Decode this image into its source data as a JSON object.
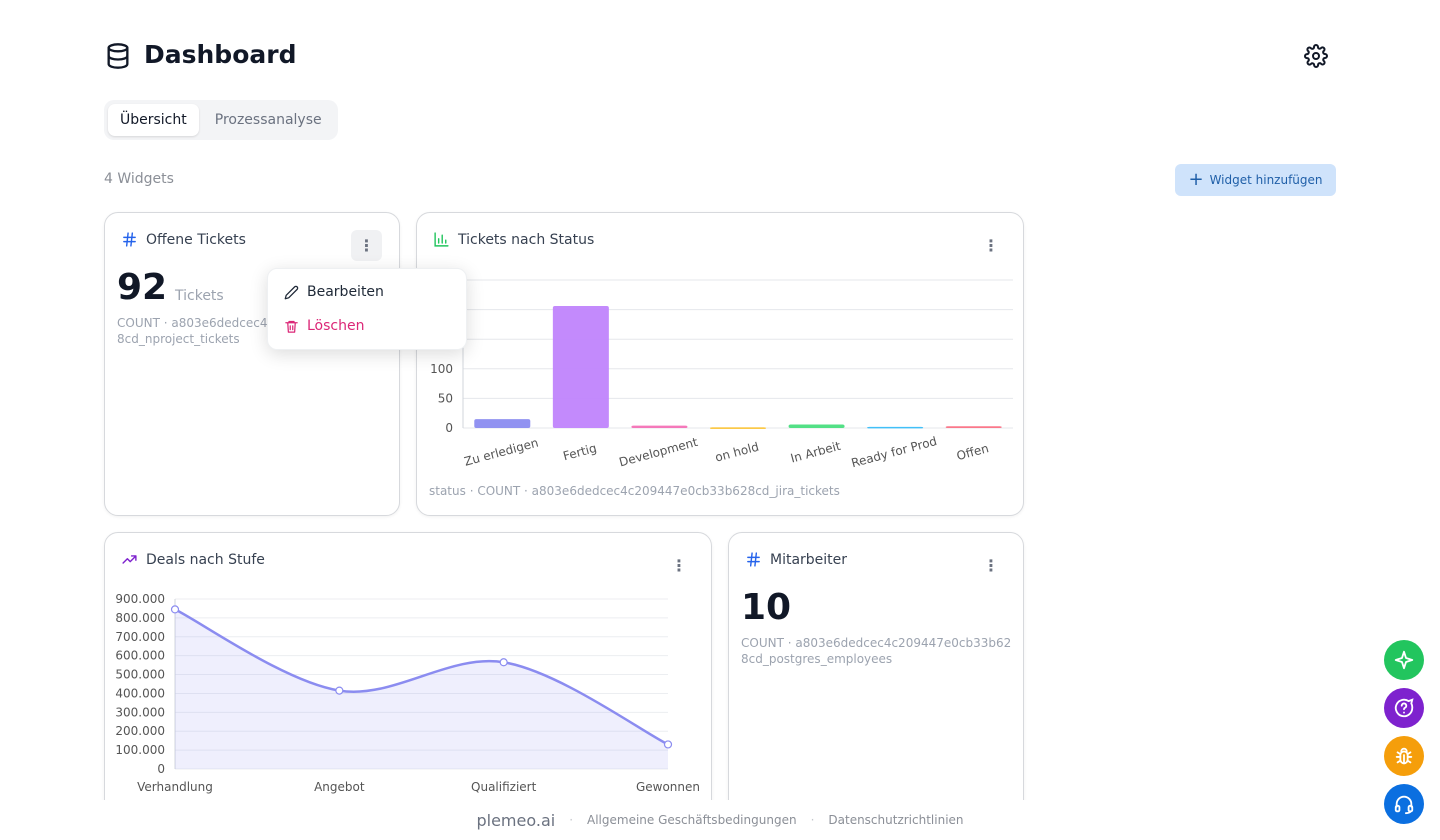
{
  "header": {
    "title": "Dashboard",
    "icon": "database-icon",
    "settings_icon": "gear-icon"
  },
  "tabs": [
    {
      "label": "Übersicht",
      "active": true
    },
    {
      "label": "Prozessanalyse",
      "active": false
    }
  ],
  "toolbar": {
    "widget_count": "4 Widgets",
    "add_widget_label": "Widget hinzufügen"
  },
  "widgets": {
    "open_tickets": {
      "title": "Offene Tickets",
      "value": "92",
      "unit": "Tickets",
      "meta": "COUNT · a803e6dedcec4c209447e0cb33b628cd_nproject_tickets"
    },
    "tickets_by_status": {
      "title": "Tickets nach Status",
      "meta": "status · COUNT · a803e6dedcec4c209447e0cb33b628cd_jira_tickets"
    },
    "deals_by_stage": {
      "title": "Deals nach Stufe"
    },
    "employees": {
      "title": "Mitarbeiter",
      "value": "10",
      "meta": "COUNT · a803e6dedcec4c209447e0cb33b628cd_postgres_employees"
    }
  },
  "context_menu": {
    "edit_label": "Bearbeiten",
    "delete_label": "Löschen"
  },
  "chart_data": [
    {
      "type": "bar",
      "title": "Tickets nach Status",
      "categories": [
        "Zu erledigen",
        "Fertig",
        "Development",
        "on hold",
        "In Arbeit",
        "Ready for Prod",
        "Offen"
      ],
      "values": [
        15,
        206,
        4,
        1,
        6,
        2,
        3
      ],
      "colors": [
        "#8b8cf0",
        "#c084fc",
        "#f472b6",
        "#fbbf24",
        "#4ade80",
        "#38bdf8",
        "#fb7185"
      ],
      "yticks": [
        "0",
        "50",
        "100"
      ],
      "ylim": [
        0,
        250
      ],
      "grid": true
    },
    {
      "type": "area",
      "title": "Deals nach Stufe",
      "categories": [
        "Verhandlung",
        "Angebot",
        "Qualifiziert",
        "Gewonnen"
      ],
      "values": [
        845000,
        415000,
        565000,
        130000
      ],
      "yticks": [
        "0",
        "100.000",
        "200.000",
        "300.000",
        "400.000",
        "500.000",
        "600.000",
        "700.000",
        "800.000",
        "900.000"
      ],
      "ylim": [
        0,
        900000
      ],
      "color": "#8b8cf0",
      "grid": true
    }
  ],
  "footer": {
    "brand": "plemeo.ai",
    "terms": "Allgemeine Geschäftsbedingungen",
    "privacy": "Datenschutzrichtlinien"
  },
  "fabs": [
    {
      "icon": "sparkle-icon",
      "color": "#22c55e"
    },
    {
      "icon": "help-chat-icon",
      "color": "#7e22ce"
    },
    {
      "icon": "bug-icon",
      "color": "#f59e0b"
    },
    {
      "icon": "headset-icon",
      "color": "#0b6fe0"
    }
  ]
}
